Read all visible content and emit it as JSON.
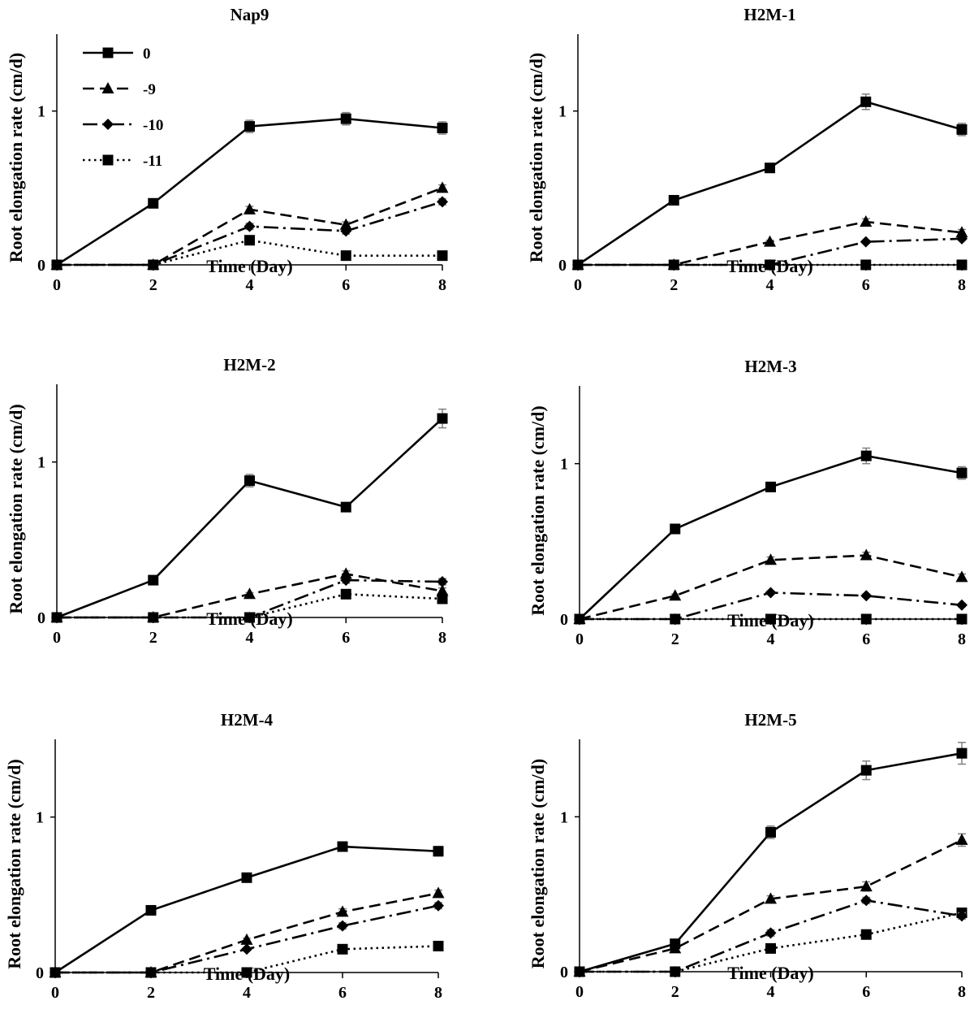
{
  "series_styles": [
    {
      "name": "0",
      "marker": "square",
      "dash": "",
      "width": 2.6
    },
    {
      "name": "-9",
      "marker": "triangle",
      "dash": "14,7",
      "width": 2.6
    },
    {
      "name": "-10",
      "marker": "diamond",
      "dash": "18,6,3,6",
      "width": 2.6
    },
    {
      "name": "-11",
      "marker": "square",
      "dash": "2.5,4.5",
      "width": 2.6
    }
  ],
  "colors": {
    "line": "#000000",
    "marker": "#000000",
    "errorbar": "#808080"
  },
  "chart_data": [
    {
      "type": "line",
      "title": "Nap9",
      "xlabel": "Time (Day)",
      "ylabel": "Root elongation rate (cm/d)",
      "x": [
        0,
        2,
        4,
        6,
        8
      ],
      "xticks": [
        "0",
        "2",
        "4",
        "6",
        "8"
      ],
      "yticks": [
        "0",
        "1"
      ],
      "xlim": [
        0,
        8
      ],
      "ylim": [
        0,
        1.5
      ],
      "legend": "top-left",
      "grid": false,
      "series": [
        {
          "name": "0",
          "values": [
            0,
            0.4,
            0.9,
            0.95,
            0.89
          ],
          "errors": [
            0,
            0.02,
            0.04,
            0.04,
            0.04
          ]
        },
        {
          "name": "-9",
          "values": [
            0,
            0,
            0.36,
            0.26,
            0.5
          ],
          "errors": [
            0,
            0,
            0.02,
            0.02,
            0.02
          ]
        },
        {
          "name": "-10",
          "values": [
            0,
            0,
            0.25,
            0.22,
            0.41
          ],
          "errors": [
            0,
            0,
            0.02,
            0.02,
            0.02
          ]
        },
        {
          "name": "-11",
          "values": [
            0,
            0,
            0.16,
            0.06,
            0.06
          ],
          "errors": [
            0,
            0,
            0.01,
            0.01,
            0.01
          ]
        }
      ]
    },
    {
      "type": "line",
      "title": "H2M-1",
      "xlabel": "Time (Day)",
      "ylabel": "Root elongation rate (cm/d)",
      "x": [
        0,
        2,
        4,
        6,
        8
      ],
      "xticks": [
        "0",
        "2",
        "4",
        "6",
        "8"
      ],
      "yticks": [
        "0",
        "1"
      ],
      "xlim": [
        0,
        8
      ],
      "ylim": [
        0,
        1.5
      ],
      "grid": false,
      "series": [
        {
          "name": "0",
          "values": [
            0,
            0.42,
            0.63,
            1.06,
            0.88
          ],
          "errors": [
            0,
            0.02,
            0.02,
            0.05,
            0.04
          ]
        },
        {
          "name": "-9",
          "values": [
            0,
            0,
            0.15,
            0.28,
            0.21
          ],
          "errors": [
            0,
            0,
            0.01,
            0.02,
            0.02
          ]
        },
        {
          "name": "-10",
          "values": [
            0,
            0,
            0,
            0.15,
            0.17
          ],
          "errors": [
            0,
            0,
            0,
            0.01,
            0.01
          ]
        },
        {
          "name": "-11",
          "values": [
            0,
            0,
            0,
            0,
            0
          ],
          "errors": [
            0,
            0,
            0,
            0,
            0
          ]
        }
      ]
    },
    {
      "type": "line",
      "title": "H2M-2",
      "xlabel": "Time (Day)",
      "ylabel": "Root elongation rate (cm/d)",
      "x": [
        0,
        2,
        4,
        6,
        8
      ],
      "xticks": [
        "0",
        "2",
        "4",
        "6",
        "8"
      ],
      "yticks": [
        "0",
        "1"
      ],
      "xlim": [
        0,
        8
      ],
      "ylim": [
        0,
        1.5
      ],
      "grid": false,
      "series": [
        {
          "name": "0",
          "values": [
            0,
            0.24,
            0.88,
            0.71,
            1.28
          ],
          "errors": [
            0,
            0.02,
            0.04,
            0.02,
            0.06
          ]
        },
        {
          "name": "-9",
          "values": [
            0,
            0,
            0.15,
            0.28,
            0.17
          ],
          "errors": [
            0,
            0,
            0.01,
            0.02,
            0.02
          ]
        },
        {
          "name": "-10",
          "values": [
            0,
            0,
            0,
            0.24,
            0.23
          ],
          "errors": [
            0,
            0,
            0,
            0.02,
            0.02
          ]
        },
        {
          "name": "-11",
          "values": [
            0,
            0,
            0,
            0.15,
            0.12
          ],
          "errors": [
            0,
            0,
            0,
            0.01,
            0.01
          ]
        }
      ]
    },
    {
      "type": "line",
      "title": "H2M-3",
      "xlabel": "Time (Day)",
      "ylabel": "Root elongation rate (cm/d)",
      "x": [
        0,
        2,
        4,
        6,
        8
      ],
      "xticks": [
        "0",
        "2",
        "4",
        "6",
        "8"
      ],
      "yticks": [
        "0",
        "1"
      ],
      "xlim": [
        0,
        8
      ],
      "ylim": [
        0,
        1.5
      ],
      "grid": false,
      "series": [
        {
          "name": "0",
          "values": [
            0,
            0.58,
            0.85,
            1.05,
            0.94
          ],
          "errors": [
            0,
            0.02,
            0.03,
            0.05,
            0.04
          ]
        },
        {
          "name": "-9",
          "values": [
            0,
            0.15,
            0.38,
            0.41,
            0.27
          ],
          "errors": [
            0,
            0.01,
            0.02,
            0.02,
            0.02
          ]
        },
        {
          "name": "-10",
          "values": [
            0,
            0,
            0.17,
            0.15,
            0.09
          ],
          "errors": [
            0,
            0,
            0.01,
            0.01,
            0.01
          ]
        },
        {
          "name": "-11",
          "values": [
            0,
            0,
            0,
            0,
            0
          ],
          "errors": [
            0,
            0,
            0,
            0,
            0
          ]
        }
      ]
    },
    {
      "type": "line",
      "title": "H2M-4",
      "xlabel": "Time (Day)",
      "ylabel": "Root elongation rate (cm/d)",
      "x": [
        0,
        2,
        4,
        6,
        8
      ],
      "xticks": [
        "0",
        "2",
        "4",
        "6",
        "8"
      ],
      "yticks": [
        "0",
        "1"
      ],
      "xlim": [
        0,
        8
      ],
      "ylim": [
        0,
        1.5
      ],
      "grid": false,
      "series": [
        {
          "name": "0",
          "values": [
            0,
            0.4,
            0.61,
            0.81,
            0.78
          ],
          "errors": [
            0,
            0.02,
            0.02,
            0.03,
            0.03
          ]
        },
        {
          "name": "-9",
          "values": [
            0,
            0,
            0.21,
            0.39,
            0.51
          ],
          "errors": [
            0,
            0,
            0.01,
            0.02,
            0.02
          ]
        },
        {
          "name": "-10",
          "values": [
            0,
            0,
            0.15,
            0.3,
            0.43
          ],
          "errors": [
            0,
            0,
            0.01,
            0.02,
            0.02
          ]
        },
        {
          "name": "-11",
          "values": [
            0,
            0,
            0,
            0.15,
            0.17
          ],
          "errors": [
            0,
            0,
            0,
            0.01,
            0.01
          ]
        }
      ]
    },
    {
      "type": "line",
      "title": "H2M-5",
      "xlabel": "Time (Day)",
      "ylabel": "Root elongation rate (cm/d)",
      "x": [
        0,
        2,
        4,
        6,
        8
      ],
      "xticks": [
        "0",
        "2",
        "4",
        "6",
        "8"
      ],
      "yticks": [
        "0",
        "1"
      ],
      "xlim": [
        0,
        8
      ],
      "ylim": [
        0,
        1.5
      ],
      "grid": false,
      "series": [
        {
          "name": "0",
          "values": [
            0,
            0.18,
            0.9,
            1.3,
            1.41
          ],
          "errors": [
            0,
            0.02,
            0.04,
            0.06,
            0.07
          ]
        },
        {
          "name": "-9",
          "values": [
            0,
            0.15,
            0.47,
            0.55,
            0.85
          ],
          "errors": [
            0,
            0.01,
            0.02,
            0.03,
            0.04
          ]
        },
        {
          "name": "-10",
          "values": [
            0,
            0,
            0.25,
            0.46,
            0.36
          ],
          "errors": [
            0,
            0,
            0.02,
            0.02,
            0.02
          ]
        },
        {
          "name": "-11",
          "values": [
            0,
            0,
            0.15,
            0.24,
            0.38
          ],
          "errors": [
            0,
            0,
            0.01,
            0.02,
            0.02
          ]
        }
      ]
    }
  ]
}
